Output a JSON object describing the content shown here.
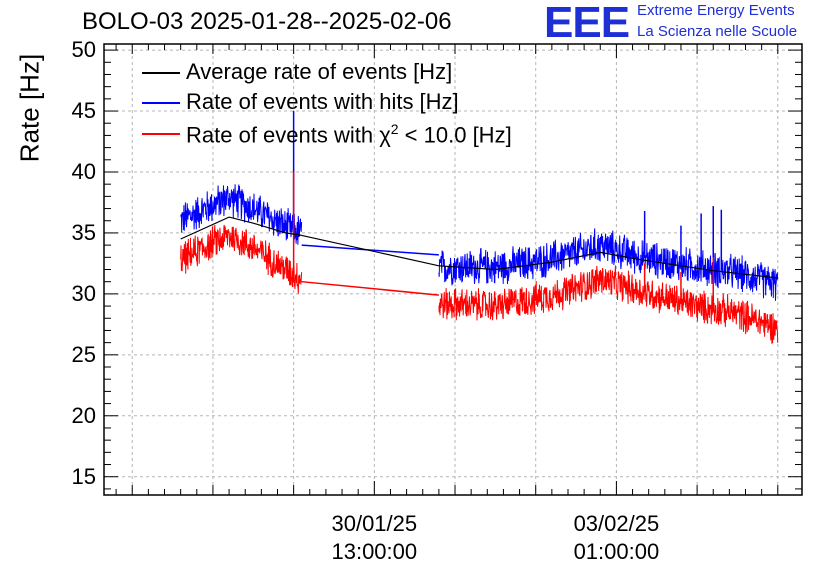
{
  "chart_data": {
    "type": "line",
    "title": "BOLO-03 2025-01-28--2025-02-06",
    "ylabel": "Rate [Hz]",
    "xlabel": "",
    "ylim": [
      13.5,
      50.5
    ],
    "yticks": [
      15,
      20,
      25,
      30,
      35,
      40,
      45,
      50
    ],
    "xlim": [
      -1.35,
      7.3
    ],
    "xticks": [
      {
        "x": 2.0,
        "date": "30/01/25",
        "time": "13:00:00"
      },
      {
        "x": 5.0,
        "date": "03/02/25",
        "time": "01:00:00"
      }
    ],
    "x_units": "days since 2025-01-28 13:00",
    "series": [
      {
        "name": "Average rate of events [Hz]",
        "legend": "Average rate of events [Hz]",
        "color": "#000000",
        "segments": [
          {
            "x": [
              -0.4,
              0.2,
              0.5,
              0.9,
              1.1
            ],
            "y": [
              34.5,
              36.3,
              35.8,
              35.0,
              34.8
            ]
          },
          {
            "x": [
              1.1,
              2.8
            ],
            "y": [
              34.8,
              32.3
            ]
          },
          {
            "x": [
              2.8,
              3.5,
              4.2,
              4.8,
              5.3,
              6.2,
              7.0
            ],
            "y": [
              32.3,
              32.0,
              32.6,
              33.4,
              32.8,
              31.9,
              31.3
            ]
          }
        ]
      },
      {
        "name": "Rate of events with hits [Hz]",
        "legend": "Rate of events with hits [Hz]",
        "color": "#0000ff",
        "base": [
          [
            -0.4,
            36.0
          ],
          [
            0.0,
            37.3
          ],
          [
            0.2,
            37.9
          ],
          [
            0.5,
            37.0
          ],
          [
            0.9,
            35.5
          ],
          [
            1.1,
            35.0
          ],
          [
            2.8,
            32.2
          ],
          [
            3.5,
            32.2
          ],
          [
            4.0,
            32.6
          ],
          [
            4.4,
            33.2
          ],
          [
            4.8,
            34.0
          ],
          [
            5.3,
            33.0
          ],
          [
            6.0,
            32.2
          ],
          [
            6.5,
            31.7
          ],
          [
            7.0,
            30.8
          ]
        ],
        "noise": 1.4,
        "spikes": [
          [
            1.0,
            45.0
          ],
          [
            5.35,
            36.8
          ],
          [
            6.2,
            37.2
          ],
          [
            6.05,
            36.6
          ],
          [
            6.3,
            36.9
          ],
          [
            5.8,
            35.6
          ]
        ],
        "gap_line": [
          [
            1.1,
            34.0
          ],
          [
            2.8,
            33.2
          ]
        ]
      },
      {
        "name": "Rate of events with chi2 < 10.0 [Hz]",
        "legend_main": "Rate of events with χ",
        "legend_sup": "2",
        "legend_tail": " < 10.0 [Hz]",
        "color": "#ff0000",
        "base": [
          [
            -0.4,
            32.8
          ],
          [
            0.0,
            34.2
          ],
          [
            0.2,
            34.8
          ],
          [
            0.5,
            33.8
          ],
          [
            0.9,
            32.0
          ],
          [
            1.1,
            31.2
          ],
          [
            2.8,
            29.2
          ],
          [
            3.5,
            29.0
          ],
          [
            4.0,
            29.6
          ],
          [
            4.4,
            30.2
          ],
          [
            4.8,
            31.2
          ],
          [
            5.3,
            30.2
          ],
          [
            6.0,
            29.0
          ],
          [
            6.5,
            28.4
          ],
          [
            7.0,
            27.2
          ]
        ],
        "noise": 1.3,
        "spikes": [
          [
            1.0,
            40.0
          ],
          [
            5.35,
            32.5
          ],
          [
            6.2,
            33.0
          ],
          [
            5.8,
            31.8
          ]
        ],
        "gap_line": [
          [
            1.1,
            31.0
          ],
          [
            2.8,
            29.9
          ]
        ]
      }
    ],
    "legend_position": "top-left"
  },
  "logo": {
    "mark": "EEE",
    "line1": "Extreme Energy Events",
    "line2": "La Scienza nelle Scuole"
  }
}
